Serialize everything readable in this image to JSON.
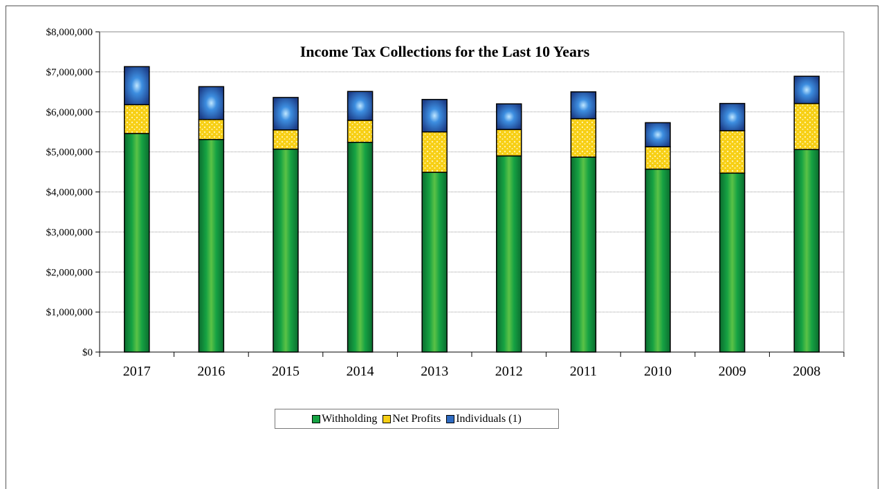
{
  "chart_data": {
    "type": "bar",
    "stacked": true,
    "title": "Income Tax Collections for the Last 10 Years",
    "xlabel": "",
    "ylabel": "",
    "categories": [
      "2017",
      "2016",
      "2015",
      "2014",
      "2013",
      "2012",
      "2011",
      "2010",
      "2009",
      "2008"
    ],
    "series": [
      {
        "name": "Withholding",
        "color": "#16a243",
        "values": [
          5460000,
          5310000,
          5070000,
          5240000,
          4490000,
          4900000,
          4870000,
          4570000,
          4470000,
          5060000
        ]
      },
      {
        "name": "Net Profits",
        "color": "#f7cf15",
        "values": [
          720000,
          500000,
          480000,
          550000,
          1010000,
          660000,
          960000,
          560000,
          1060000,
          1150000
        ]
      },
      {
        "name": "Individuals (1)",
        "color": "#2f6bc1",
        "values": [
          950000,
          820000,
          810000,
          720000,
          810000,
          640000,
          670000,
          600000,
          680000,
          680000
        ]
      }
    ],
    "ylim": [
      0,
      8000000
    ],
    "yticks": [
      0,
      1000000,
      2000000,
      3000000,
      4000000,
      5000000,
      6000000,
      7000000,
      8000000
    ],
    "ytick_labels": [
      "$0",
      "$1,000,000",
      "$2,000,000",
      "$3,000,000",
      "$4,000,000",
      "$5,000,000",
      "$6,000,000",
      "$7,000,000",
      "$8,000,000"
    ],
    "grid": true,
    "legend_position": "bottom-center"
  }
}
